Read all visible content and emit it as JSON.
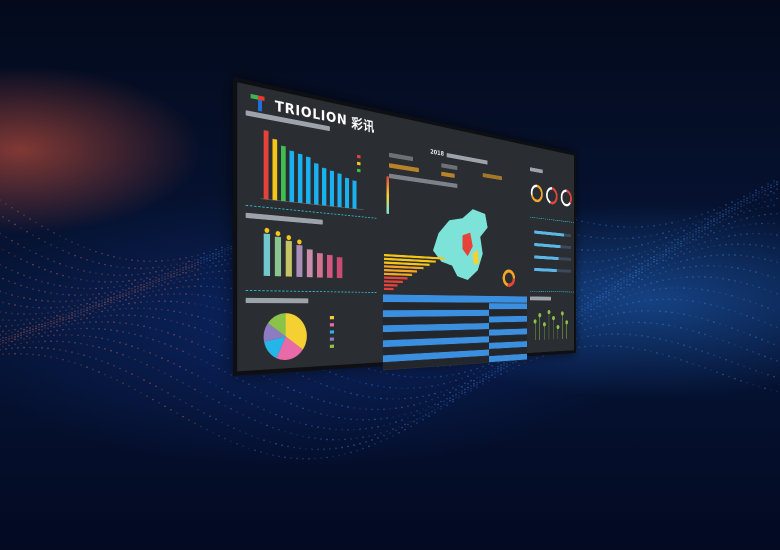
{
  "brand": {
    "name": "TRIOLION",
    "name_cn": "彩讯",
    "colors": [
      "#3fb34f",
      "#e53b2e",
      "#1f6fd8"
    ]
  },
  "center_title": "2018",
  "colors": {
    "accent": "#2ec6d8",
    "map": "#7de3d8",
    "table_header": "#3a8fe0",
    "bar_blue": "#1ab1f0"
  },
  "ranking_bar_values": [
    1900,
    1700,
    1550,
    1450,
    1400,
    1350,
    1200,
    1100,
    1050,
    1000,
    900,
    850
  ],
  "gradient_bar_values": [
    90,
    85,
    78,
    70,
    62,
    55,
    52,
    48
  ],
  "pie_values": [
    35,
    22,
    15,
    13,
    15
  ],
  "pie_colors": [
    "#f5d033",
    "#e86aa8",
    "#26b5e8",
    "#8e7cc3",
    "#8bc34a"
  ],
  "hbar_values": [
    95,
    80,
    70,
    60,
    50,
    42,
    35,
    28,
    20,
    14
  ],
  "gauges": [
    0.7,
    0.55,
    0.35
  ],
  "gauge_colors": [
    "#f5a623",
    "#e5433a",
    "#e5433a"
  ],
  "right_hbars": [
    0.8,
    0.7,
    0.65,
    0.6
  ],
  "lollipop_values": [
    0.6,
    0.8,
    0.5,
    0.9,
    0.7,
    0.4,
    0.85,
    0.55
  ],
  "table_rows": 10
}
